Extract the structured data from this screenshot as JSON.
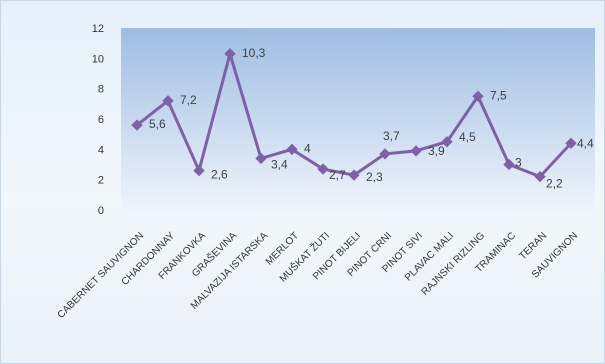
{
  "chart_data": {
    "type": "line",
    "title": "",
    "xlabel": "",
    "ylabel": "",
    "ylim": [
      0,
      12
    ],
    "yticks": [
      0,
      2,
      4,
      6,
      8,
      10,
      12
    ],
    "grid": false,
    "legend": "none",
    "categories": [
      "CABERNET SAUVIGNON",
      "CHARDONNAY",
      "FRANKOVKA",
      "GRAŠEVINA",
      "MALVAZIJA ISTARSKA",
      "MERLOT",
      "MUŠKAT ŽUTI",
      "PINOT BIJELI",
      "PINOT CRNI",
      "PINOT SIVI",
      "PLAVAC MALI",
      "RAJNSKI RIZLING",
      "TRAMINAC",
      "TERAN",
      "SAUVIGNON"
    ],
    "series": [
      {
        "values": [
          5.6,
          7.2,
          2.6,
          10.3,
          3.4,
          4,
          2.7,
          2.3,
          3.7,
          3.9,
          4.5,
          7.5,
          3,
          2.2,
          4.4
        ],
        "labels": [
          "5,6",
          "7,2",
          "2,6",
          "10,3",
          "3,4",
          "4",
          "2,7",
          "2,3",
          "3,7",
          "3,9",
          "4,5",
          "7,5",
          "3",
          "2,2",
          "4,4"
        ],
        "color": "#7f5fa8"
      }
    ],
    "colors": {
      "line": "#7f5fa8",
      "plot_top": "#9fbde2",
      "plot_bottom": "#eef4fb",
      "text": "#333333"
    }
  }
}
